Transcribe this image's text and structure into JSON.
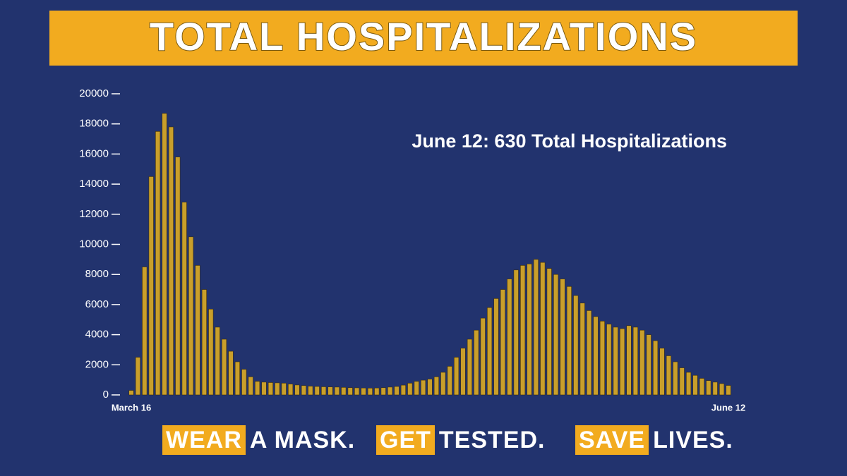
{
  "chart_data": {
    "type": "bar",
    "title": "TOTAL HOSPITALIZATIONS",
    "annotation": "June 12: 630 Total Hospitalizations",
    "color": "#c99f2b",
    "categories": [
      "March 16",
      null,
      null,
      null,
      null,
      null,
      null,
      null,
      null,
      null,
      null,
      null,
      null,
      null,
      null,
      null,
      null,
      null,
      null,
      null,
      null,
      null,
      null,
      null,
      null,
      null,
      null,
      null,
      null,
      null,
      null,
      null,
      null,
      null,
      null,
      null,
      null,
      null,
      null,
      null,
      null,
      null,
      null,
      null,
      null,
      null,
      null,
      null,
      null,
      null,
      null,
      null,
      null,
      null,
      null,
      null,
      null,
      null,
      null,
      null,
      null,
      null,
      null,
      null,
      null,
      null,
      null,
      null,
      null,
      null,
      null,
      null,
      null,
      null,
      null,
      null,
      null,
      null,
      null,
      null,
      null,
      null,
      null,
      null,
      null,
      null,
      null,
      null,
      null,
      null,
      "June 12"
    ],
    "values": [
      300,
      2500,
      8500,
      14500,
      17500,
      18700,
      17800,
      15800,
      12800,
      10500,
      8600,
      7000,
      5700,
      4500,
      3700,
      2900,
      2200,
      1700,
      1200,
      900,
      850,
      820,
      800,
      780,
      720,
      660,
      620,
      580,
      560,
      540,
      530,
      520,
      500,
      480,
      470,
      460,
      450,
      460,
      480,
      520,
      560,
      650,
      780,
      900,
      980,
      1050,
      1200,
      1500,
      1900,
      2500,
      3100,
      3700,
      4300,
      5100,
      5800,
      6400,
      7000,
      7700,
      8300,
      8600,
      8700,
      9000,
      8800,
      8400,
      8000,
      7700,
      7200,
      6600,
      6100,
      5600,
      5200,
      4900,
      4700,
      4500,
      4400,
      4600,
      4500,
      4300,
      4000,
      3600,
      3100,
      2600,
      2200,
      1800,
      1500,
      1300,
      1100,
      950,
      850,
      750,
      630
    ],
    "ylim": [
      0,
      20000
    ],
    "yticks": [
      0,
      2000,
      4000,
      6000,
      8000,
      10000,
      12000,
      14000,
      16000,
      18000,
      20000
    ]
  },
  "footer": [
    {
      "highlight": "WEAR",
      "text": "A MASK."
    },
    {
      "highlight": "GET",
      "text": "TESTED."
    },
    {
      "highlight": "SAVE",
      "text": "LIVES."
    }
  ]
}
